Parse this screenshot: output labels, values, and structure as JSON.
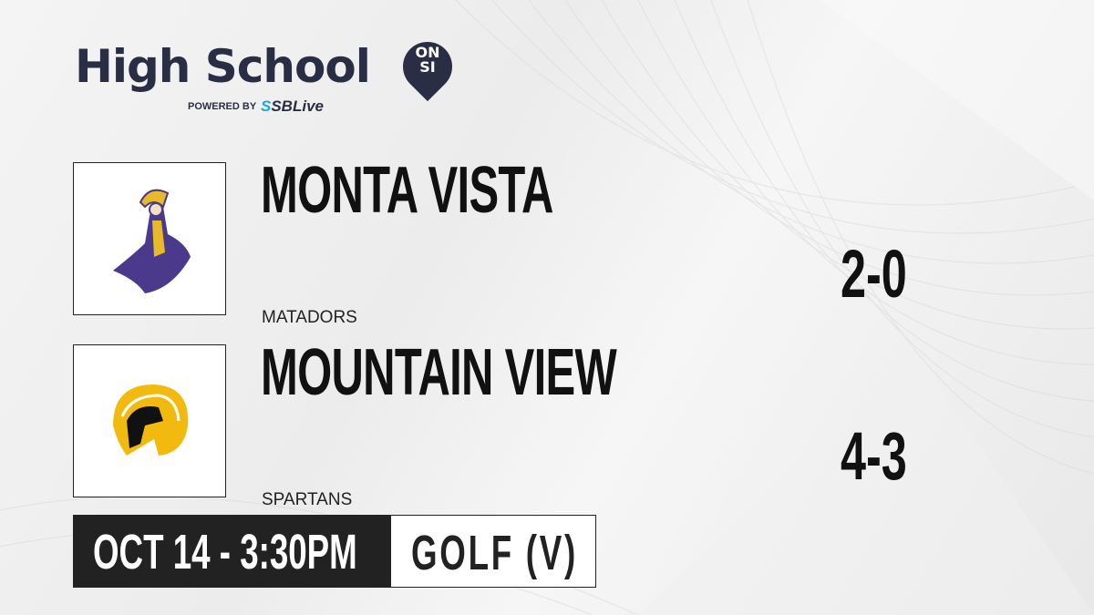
{
  "brand": {
    "title": "High School",
    "badge_top": "ON",
    "badge_bottom": "SI",
    "powered_by": "POWERED BY",
    "partner_prefix": "S",
    "partner": "SBLive",
    "partner_color": "#1fa6e0",
    "text_color": "#2a2e45"
  },
  "teams": [
    {
      "name": "MONTA VISTA",
      "mascot": "MATADORS",
      "record": "2-0",
      "logo_icon": "matador-logo",
      "colors": [
        "#4b3a8c",
        "#e8b928"
      ]
    },
    {
      "name": "MOUNTAIN VIEW",
      "mascot": "SPARTANS",
      "record": "4-3",
      "logo_icon": "spartan-helmet-logo",
      "colors": [
        "#f2b90f",
        "#111111"
      ]
    }
  ],
  "event": {
    "datetime": "OCT 14 - 3:30PM",
    "sport": "GOLF (V)"
  }
}
